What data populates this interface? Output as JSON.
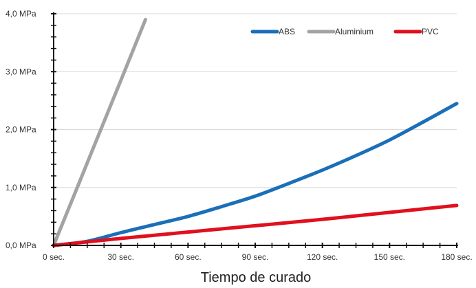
{
  "chart_data": {
    "type": "line",
    "title": "",
    "xlabel": "Tiempo de curado",
    "ylabel": "",
    "xlim": [
      0,
      180
    ],
    "ylim": [
      0,
      4.0
    ],
    "x_ticks": [
      0,
      30,
      60,
      90,
      120,
      150,
      180
    ],
    "x_tick_labels": [
      "0 sec.",
      "30 sec.",
      "60 sec.",
      "90 sec.",
      "120 sec.",
      "150 sec.",
      "180 sec."
    ],
    "y_ticks": [
      0,
      1,
      2,
      3,
      4
    ],
    "y_tick_labels": [
      "0,0 MPa",
      "1,0 MPa",
      "2,0 MPa",
      "3,0 MPa",
      "4,0 MPa"
    ],
    "grid": "horizontal",
    "legend_position": "top-right",
    "series": [
      {
        "name": "ABS",
        "color": "#1a6fb8",
        "x": [
          0,
          15,
          30,
          45,
          60,
          75,
          90,
          105,
          120,
          135,
          150,
          165,
          180
        ],
        "y": [
          0,
          0.07,
          0.22,
          0.36,
          0.5,
          0.67,
          0.85,
          1.07,
          1.3,
          1.55,
          1.82,
          2.13,
          2.45
        ]
      },
      {
        "name": "Aluminium",
        "color": "#a3a3a3",
        "x": [
          0,
          10,
          20,
          30,
          41
        ],
        "y": [
          0,
          0.95,
          1.9,
          2.85,
          3.9
        ]
      },
      {
        "name": "PVC",
        "color": "#e0101e",
        "x": [
          0,
          30,
          60,
          90,
          120,
          150,
          180
        ],
        "y": [
          0,
          0.12,
          0.23,
          0.34,
          0.45,
          0.57,
          0.69
        ]
      }
    ]
  }
}
